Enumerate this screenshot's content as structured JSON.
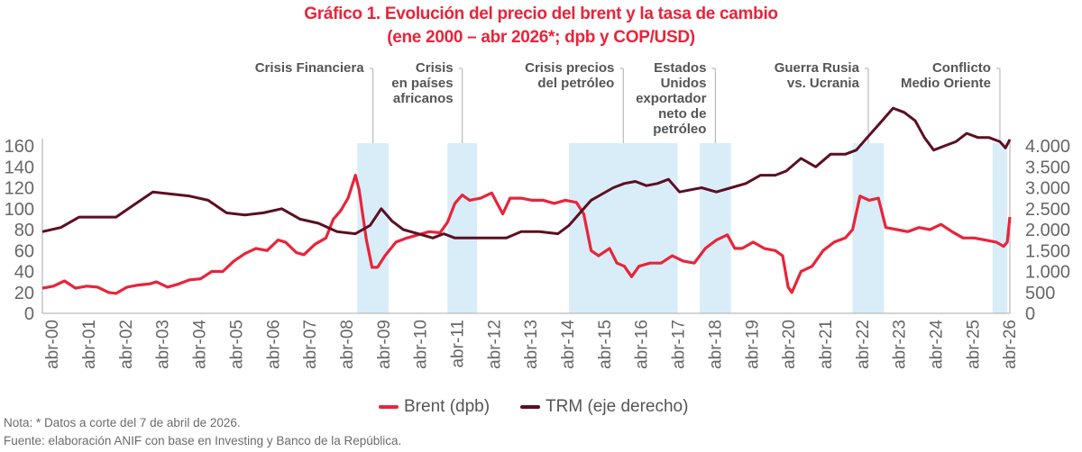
{
  "header": {
    "title_line1": "Gráfico 1. Evolución del precio del brent y la tasa de cambio",
    "title_line2": "(ene 2000 – abr 2026*; dpb y COP/USD)"
  },
  "footer": {
    "note": "Nota: * Datos a corte del 7 de abril de 2026.",
    "source": "Fuente: elaboración ANIF con base en Investing y Banco de la República."
  },
  "chart_data": {
    "type": "line",
    "title": "Gráfico 1. Evolución del precio del brent y la tasa de cambio (ene 2000 – abr 2026*; dpb y COP/USD)",
    "xlabel": "",
    "ylabel_left": "dpb",
    "ylabel_right": "COP/USD",
    "ylim_left": [
      0,
      160
    ],
    "ylim_right": [
      0,
      4000
    ],
    "x_range": [
      2000.0,
      2026.27
    ],
    "grid": false,
    "legend_position": "bottom-center",
    "y_ticks_left": [
      "0",
      "20",
      "40",
      "60",
      "80",
      "100",
      "120",
      "140",
      "160"
    ],
    "y_ticks_right": [
      "0",
      "500",
      "1.000",
      "1.500",
      "2.000",
      "2.500",
      "3.000",
      "3.500",
      "4.000"
    ],
    "x_ticks": [
      "abr-00",
      "abr-01",
      "abr-02",
      "abr-03",
      "abr-04",
      "abr-05",
      "abr-06",
      "abr-07",
      "abr-08",
      "abr-09",
      "abr-10",
      "abr-11",
      "abr-12",
      "abr-13",
      "abr-14",
      "abr-15",
      "abr-16",
      "abr-17",
      "abr-18",
      "abr-19",
      "abr-20",
      "abr-21",
      "abr-22",
      "abr-23",
      "abr-24",
      "abr-25",
      "abr-26"
    ],
    "colors": {
      "brent": "#e8243a",
      "trm": "#5c0f22",
      "shade": "#d9edf8",
      "axis": "#aaaaaa",
      "tick_text": "#666666",
      "annotation_text": "#555555"
    },
    "series": [
      {
        "name": "Brent (dpb)",
        "axis": "left",
        "x": [
          2000.0,
          2000.3,
          2000.6,
          2000.9,
          2001.2,
          2001.5,
          2001.8,
          2002.0,
          2002.3,
          2002.6,
          2002.9,
          2003.1,
          2003.4,
          2003.7,
          2004.0,
          2004.3,
          2004.6,
          2004.9,
          2005.2,
          2005.5,
          2005.8,
          2006.1,
          2006.4,
          2006.6,
          2006.9,
          2007.1,
          2007.4,
          2007.7,
          2007.9,
          2008.1,
          2008.3,
          2008.5,
          2008.6,
          2008.8,
          2008.95,
          2009.1,
          2009.3,
          2009.6,
          2009.9,
          2010.2,
          2010.5,
          2010.8,
          2011.0,
          2011.2,
          2011.4,
          2011.6,
          2011.9,
          2012.2,
          2012.5,
          2012.7,
          2013.0,
          2013.3,
          2013.6,
          2013.9,
          2014.2,
          2014.5,
          2014.7,
          2014.9,
          2015.1,
          2015.4,
          2015.6,
          2015.8,
          2016.0,
          2016.2,
          2016.5,
          2016.8,
          2017.1,
          2017.4,
          2017.7,
          2018.0,
          2018.3,
          2018.6,
          2018.8,
          2019.0,
          2019.3,
          2019.6,
          2019.9,
          2020.1,
          2020.25,
          2020.35,
          2020.6,
          2020.9,
          2021.2,
          2021.5,
          2021.8,
          2022.0,
          2022.2,
          2022.45,
          2022.7,
          2022.9,
          2023.2,
          2023.5,
          2023.8,
          2024.1,
          2024.4,
          2024.7,
          2025.0,
          2025.3,
          2025.6,
          2025.9,
          2026.1,
          2026.2,
          2026.27
        ],
        "values": [
          24,
          26,
          31,
          24,
          26,
          25,
          20,
          19,
          25,
          27,
          28,
          30,
          25,
          28,
          32,
          33,
          40,
          40,
          50,
          57,
          62,
          60,
          70,
          68,
          58,
          56,
          66,
          72,
          90,
          98,
          110,
          132,
          118,
          70,
          44,
          44,
          55,
          68,
          72,
          75,
          78,
          77,
          87,
          105,
          113,
          108,
          110,
          115,
          95,
          110,
          110,
          108,
          108,
          105,
          108,
          106,
          95,
          60,
          55,
          62,
          48,
          45,
          35,
          45,
          48,
          48,
          55,
          50,
          48,
          62,
          70,
          75,
          62,
          62,
          68,
          62,
          60,
          55,
          25,
          20,
          40,
          45,
          60,
          68,
          72,
          80,
          112,
          108,
          110,
          82,
          80,
          78,
          82,
          80,
          85,
          78,
          72,
          72,
          70,
          68,
          64,
          68,
          92
        ]
      },
      {
        "name": "TRM (eje derecho)",
        "axis": "right",
        "x": [
          2000.0,
          2000.5,
          2001.0,
          2001.5,
          2002.0,
          2002.5,
          2003.0,
          2003.5,
          2004.0,
          2004.5,
          2005.0,
          2005.5,
          2006.0,
          2006.5,
          2007.0,
          2007.5,
          2008.0,
          2008.5,
          2008.9,
          2009.2,
          2009.5,
          2009.8,
          2010.2,
          2010.6,
          2010.9,
          2011.2,
          2011.5,
          2011.8,
          2012.2,
          2012.6,
          2013.0,
          2013.5,
          2014.0,
          2014.3,
          2014.6,
          2014.9,
          2015.2,
          2015.5,
          2015.8,
          2016.1,
          2016.4,
          2016.7,
          2017.0,
          2017.3,
          2017.6,
          2017.9,
          2018.3,
          2018.7,
          2019.1,
          2019.5,
          2019.9,
          2020.2,
          2020.6,
          2021.0,
          2021.4,
          2021.8,
          2022.1,
          2022.4,
          2022.8,
          2023.1,
          2023.4,
          2023.7,
          2023.95,
          2024.2,
          2024.5,
          2024.8,
          2025.1,
          2025.4,
          2025.7,
          2026.0,
          2026.15,
          2026.27
        ],
        "values": [
          1950,
          2050,
          2300,
          2300,
          2300,
          2600,
          2900,
          2850,
          2800,
          2700,
          2400,
          2350,
          2400,
          2500,
          2250,
          2150,
          1950,
          1900,
          2100,
          2500,
          2200,
          2000,
          1900,
          1800,
          1900,
          1800,
          1800,
          1800,
          1800,
          1800,
          1950,
          1950,
          1900,
          2100,
          2400,
          2700,
          2850,
          3000,
          3100,
          3150,
          3050,
          3100,
          3200,
          2900,
          2950,
          3000,
          2900,
          3000,
          3100,
          3300,
          3300,
          3400,
          3700,
          3500,
          3800,
          3800,
          3900,
          4200,
          4600,
          4900,
          4800,
          4600,
          4200,
          3900,
          4000,
          4100,
          4300,
          4200,
          4200,
          4100,
          3950,
          4150
        ]
      }
    ],
    "shaded_periods": [
      {
        "label": "Crisis  Financiera",
        "start": 2008.55,
        "end": 2009.4
      },
      {
        "label": "Crisis en países africanos",
        "start": 2011.0,
        "end": 2011.8
      },
      {
        "label": "Crisis precios del  petróleo",
        "start": 2014.3,
        "end": 2017.25
      },
      {
        "label": "Estados Unidos exportador neto de petróleo",
        "start": 2017.85,
        "end": 2018.7
      },
      {
        "label": "Guerra Rusia vs. Ucrania",
        "start": 2022.0,
        "end": 2022.85
      },
      {
        "label": "Conflicto Medio Oriente",
        "start": 2025.8,
        "end": 2026.2
      }
    ],
    "annotations": [
      {
        "lines": [
          "Crisis  Financiera"
        ]
      },
      {
        "lines": [
          "Crisis",
          "en países",
          "africanos"
        ]
      },
      {
        "lines": [
          "Crisis precios",
          "del  petróleo"
        ]
      },
      {
        "lines": [
          "Estados",
          "Unidos",
          "exportador",
          "neto de",
          "petróleo"
        ]
      },
      {
        "lines": [
          "Guerra Rusia",
          "vs. Ucrania"
        ]
      },
      {
        "lines": [
          "Conflicto",
          "Medio Oriente"
        ]
      }
    ]
  },
  "legend": [
    {
      "label": "Brent (dpb)"
    },
    {
      "label": "TRM (eje derecho)"
    }
  ]
}
